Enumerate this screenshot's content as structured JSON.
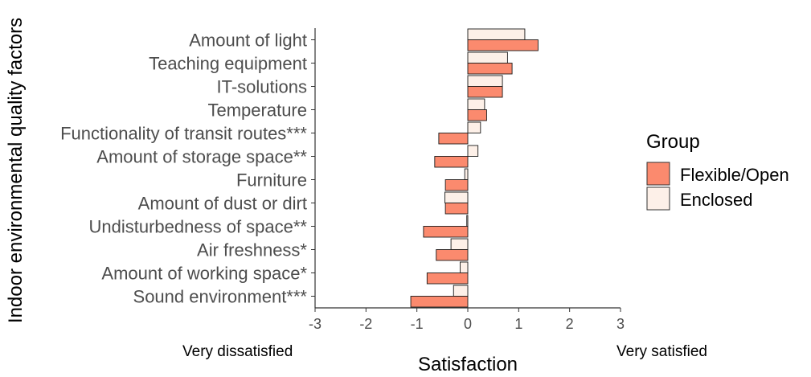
{
  "chart_data": {
    "type": "bar",
    "orientation": "horizontal",
    "xlabel": "Satisfaction",
    "ylabel": "Indoor environmental quality factors",
    "xlim": [
      -3,
      3
    ],
    "xticks": [
      "-3",
      "-2",
      "-1",
      "0",
      "1",
      "2",
      "3"
    ],
    "left_annotation": "Very dissatisfied",
    "right_annotation": "Very satisfied",
    "legend": {
      "title": "Group",
      "placement": "right"
    },
    "categories": [
      "Amount of light",
      "Teaching equipment",
      "IT-solutions",
      "Temperature",
      "Functionality of transit routes***",
      "Amount of storage space**",
      "Furniture",
      "Amount of dust or dirt",
      "Undisturbedness of space**",
      "Air freshness*",
      "Amount of working space*",
      "Sound environment***"
    ],
    "series": [
      {
        "name": "Enclosed",
        "color": "#fdf0e8",
        "values": [
          1.12,
          0.78,
          0.68,
          0.33,
          0.25,
          0.2,
          -0.06,
          -0.45,
          -0.02,
          -0.33,
          -0.15,
          -0.28
        ]
      },
      {
        "name": "Flexible/Open",
        "color": "#fb8a6e",
        "values": [
          1.38,
          0.87,
          0.68,
          0.37,
          -0.57,
          -0.65,
          -0.44,
          -0.44,
          -0.87,
          -0.62,
          -0.8,
          -1.12
        ]
      }
    ]
  }
}
